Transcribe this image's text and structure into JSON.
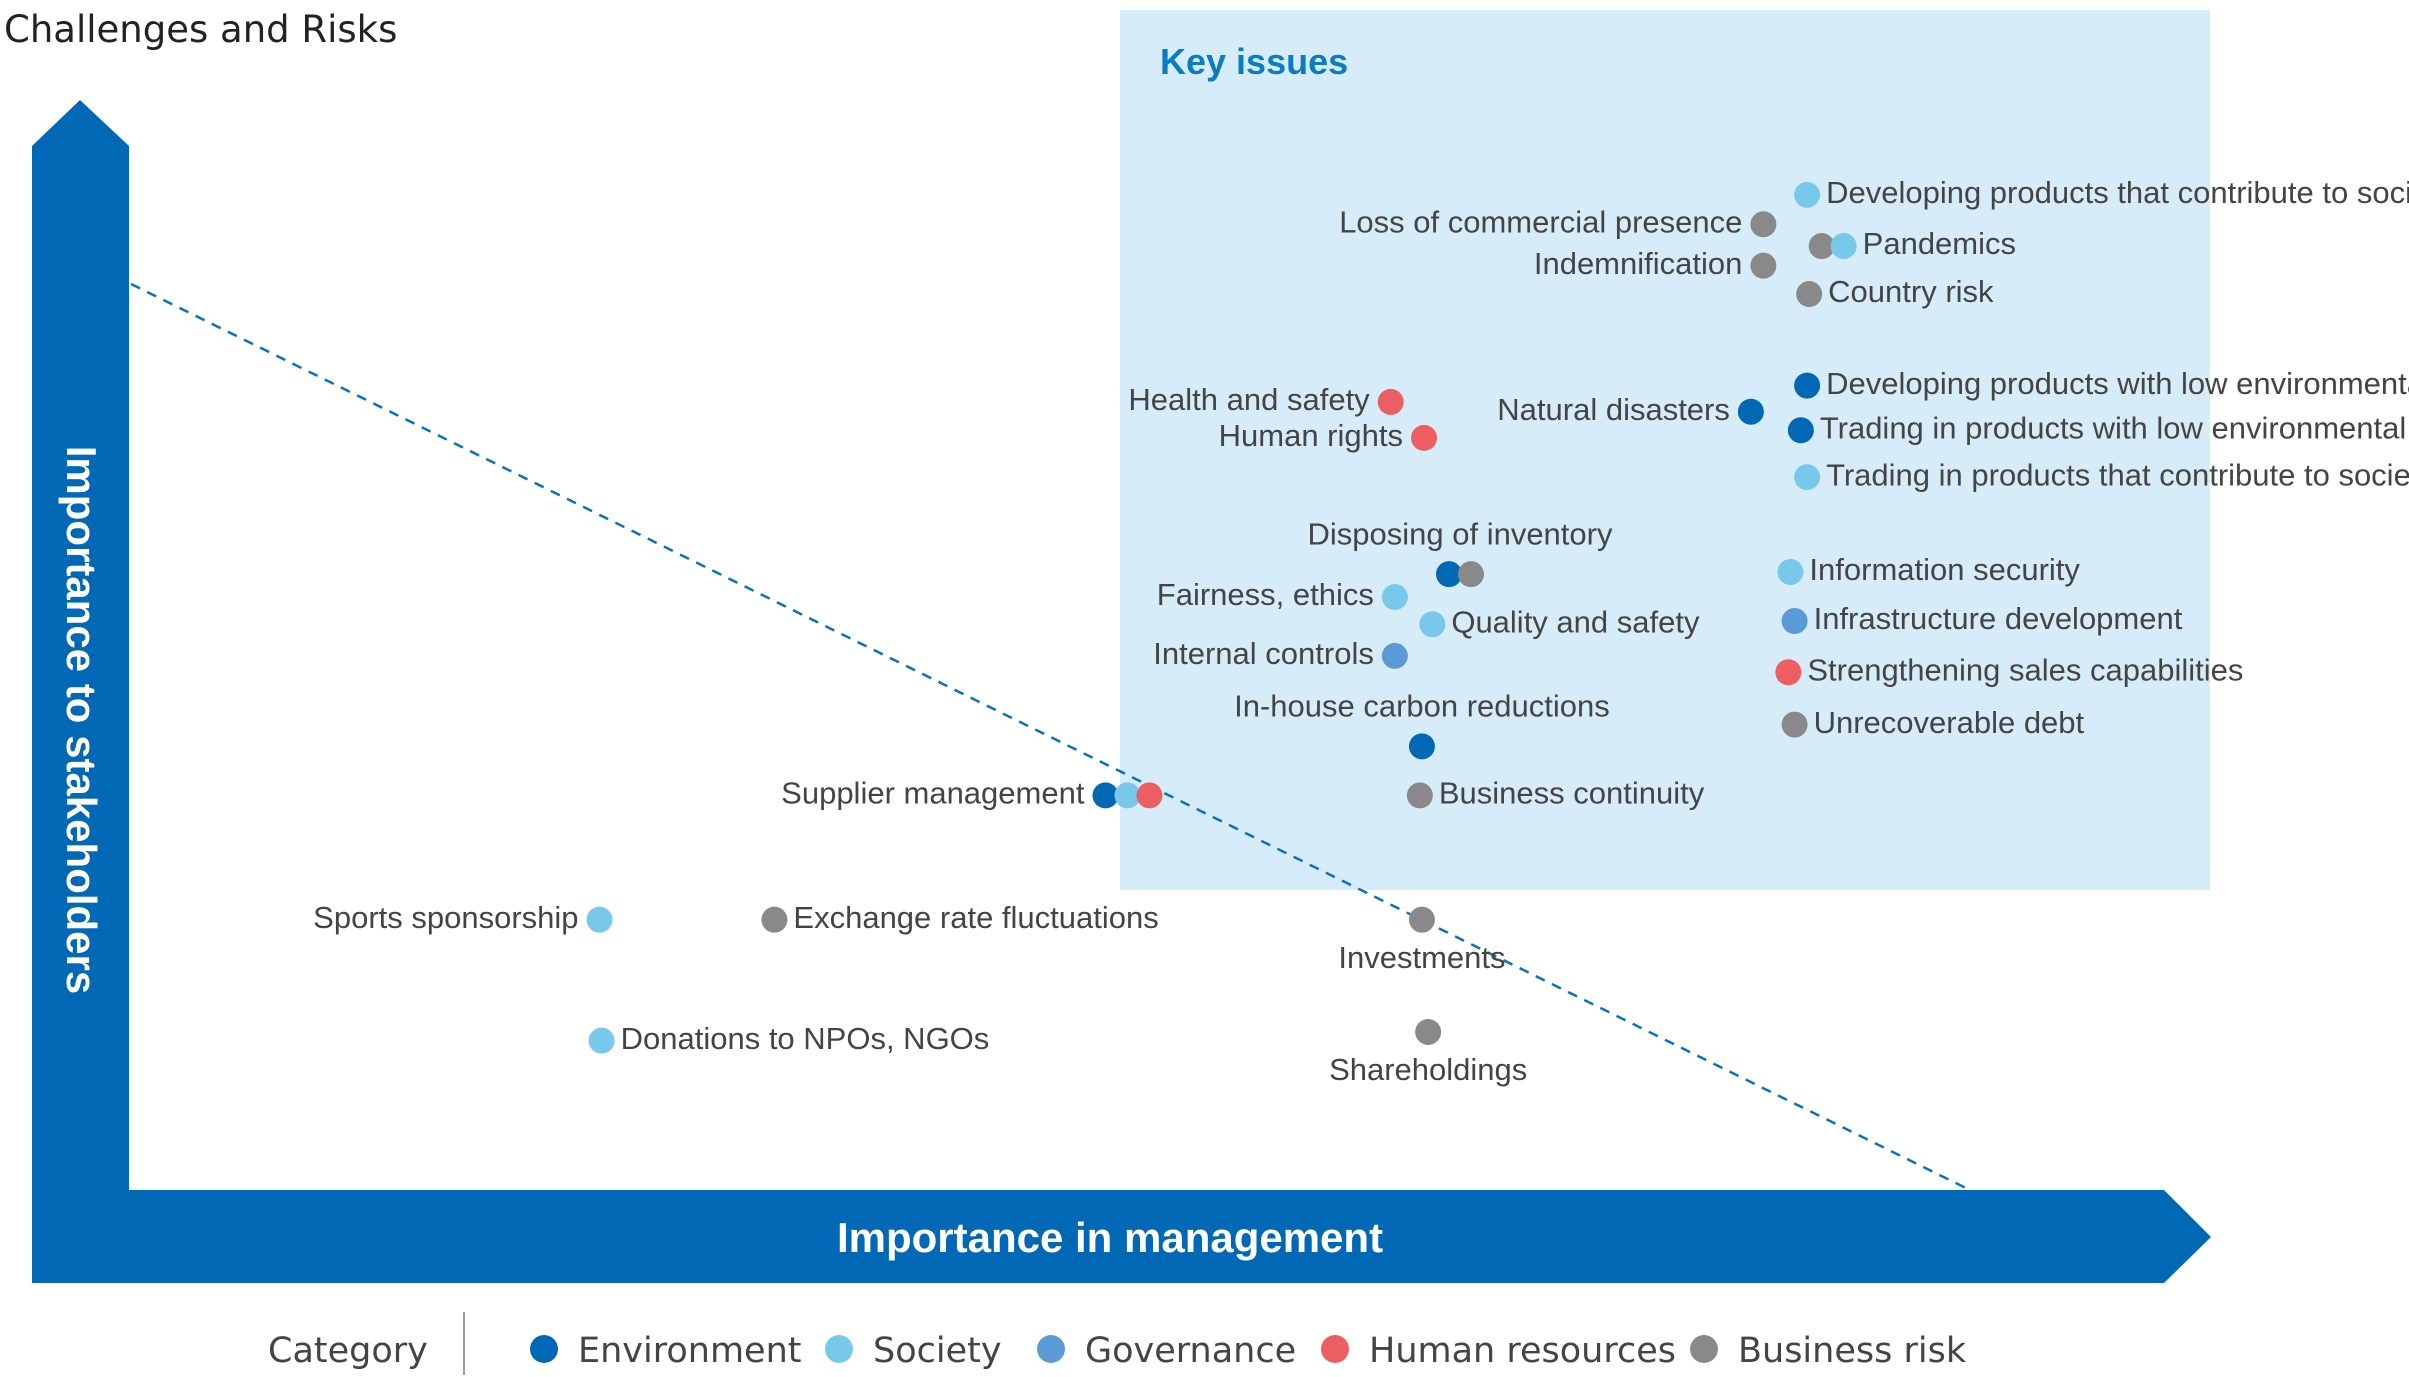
{
  "chart_data": {
    "type": "scatter",
    "title": "Challenges and Risks",
    "xlabel": "Importance in management",
    "ylabel": "Importance to stakeholders",
    "region_label": "Key issues",
    "legend": {
      "title": "Category",
      "placement": "bottom",
      "items": [
        {
          "key": "environment",
          "label": "Environment",
          "color": "#0068b4"
        },
        {
          "key": "society",
          "label": "Society",
          "color": "#78c8ec"
        },
        {
          "key": "governance",
          "label": "Governance",
          "color": "#5b9bd5"
        },
        {
          "key": "hr",
          "label": "Human resources",
          "color": "#eb5f63"
        },
        {
          "key": "business",
          "label": "Business risk",
          "color": "#898989"
        }
      ]
    },
    "points": [
      {
        "label": "Developing products that contribute to society",
        "categories": [
          "society"
        ],
        "x": 0.806,
        "y": 0.913
      },
      {
        "label": "Loss of commercial presence",
        "categories": [
          "business"
        ],
        "x": 0.785,
        "y": 0.886
      },
      {
        "label": "Pandemics",
        "categories": [
          "business",
          "society"
        ],
        "x": 0.813,
        "y": 0.866
      },
      {
        "label": "Indemnification",
        "categories": [
          "business"
        ],
        "x": 0.785,
        "y": 0.848
      },
      {
        "label": "Country risk",
        "categories": [
          "business"
        ],
        "x": 0.807,
        "y": 0.822
      },
      {
        "label": "Developing products with low environmental impact",
        "categories": [
          "environment"
        ],
        "x": 0.806,
        "y": 0.738
      },
      {
        "label": "Natural disasters",
        "categories": [
          "environment"
        ],
        "x": 0.779,
        "y": 0.714
      },
      {
        "label": "Trading in products with low environmental impact",
        "categories": [
          "environment"
        ],
        "x": 0.803,
        "y": 0.697
      },
      {
        "label": "Trading in products that contribute to society",
        "categories": [
          "society"
        ],
        "x": 0.806,
        "y": 0.654
      },
      {
        "label": "Health and safety",
        "categories": [
          "hr"
        ],
        "x": 0.606,
        "y": 0.723
      },
      {
        "label": "Human rights",
        "categories": [
          "hr"
        ],
        "x": 0.622,
        "y": 0.69
      },
      {
        "label": "Disposing of inventory",
        "categories": [
          "environment",
          "business"
        ],
        "x": 0.634,
        "y": 0.565
      },
      {
        "label": "Fairness, ethics",
        "categories": [
          "society"
        ],
        "x": 0.608,
        "y": 0.544
      },
      {
        "label": "Quality and safety",
        "categories": [
          "society"
        ],
        "x": 0.626,
        "y": 0.519
      },
      {
        "label": "Internal controls",
        "categories": [
          "governance"
        ],
        "x": 0.608,
        "y": 0.49
      },
      {
        "label": "In-house carbon reductions",
        "categories": [
          "environment"
        ],
        "x": 0.621,
        "y": 0.407
      },
      {
        "label": "Business continuity",
        "categories": [
          "business"
        ],
        "x": 0.62,
        "y": 0.362
      },
      {
        "label": "Information security",
        "categories": [
          "society"
        ],
        "x": 0.798,
        "y": 0.567
      },
      {
        "label": "Infrastructure development",
        "categories": [
          "governance"
        ],
        "x": 0.8,
        "y": 0.522
      },
      {
        "label": "Strengthening sales capabilities",
        "categories": [
          "hr"
        ],
        "x": 0.797,
        "y": 0.475
      },
      {
        "label": "Unrecoverable debt",
        "categories": [
          "business"
        ],
        "x": 0.8,
        "y": 0.427
      },
      {
        "label": "Supplier management",
        "categories": [
          "environment",
          "society",
          "hr"
        ],
        "x": 0.469,
        "y": 0.362
      },
      {
        "label": "Sports sponsorship",
        "categories": [
          "society"
        ],
        "x": 0.226,
        "y": 0.248
      },
      {
        "label": "Exchange rate fluctuations",
        "categories": [
          "business"
        ],
        "x": 0.31,
        "y": 0.248
      },
      {
        "label": "Investments",
        "categories": [
          "business"
        ],
        "x": 0.621,
        "y": 0.248
      },
      {
        "label": "Donations to NPOs, NGOs",
        "categories": [
          "society"
        ],
        "x": 0.227,
        "y": 0.137
      },
      {
        "label": "Shareholdings",
        "categories": [
          "business"
        ],
        "x": 0.624,
        "y": 0.145
      }
    ]
  }
}
